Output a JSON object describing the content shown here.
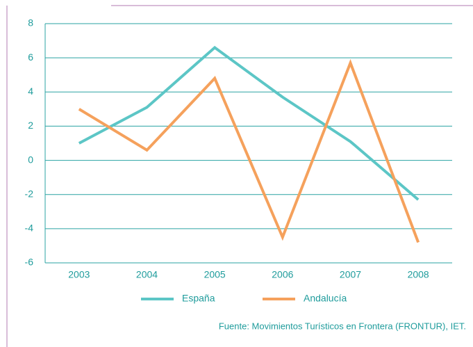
{
  "chart_data": {
    "type": "line",
    "categories": [
      "2003",
      "2004",
      "2005",
      "2006",
      "2007",
      "2008"
    ],
    "series": [
      {
        "name": "España",
        "color": "#5cc6c6",
        "values": [
          1.0,
          3.1,
          6.6,
          3.7,
          1.1,
          -2.3
        ]
      },
      {
        "name": "Andalucía",
        "color": "#f5a15c",
        "values": [
          3.0,
          0.6,
          4.8,
          -4.5,
          5.7,
          -4.8
        ]
      }
    ],
    "ylim": [
      -6,
      8
    ],
    "yticks": [
      -6,
      -4,
      -2,
      0,
      2,
      4,
      6,
      8
    ],
    "grid": true,
    "source": "Fuente: Movimientos Turísticos en Frontera (FRONTUR), IET."
  }
}
